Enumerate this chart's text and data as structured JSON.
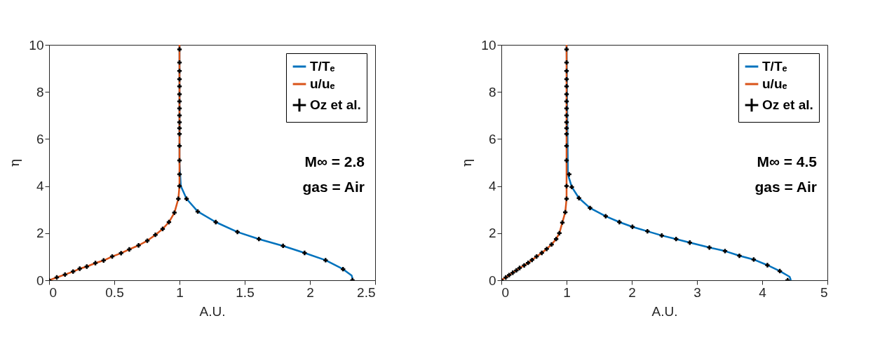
{
  "chart_data": [
    {
      "type": "line",
      "xlabel": "A.U.",
      "ylabel": "η",
      "xlim": [
        0,
        2.5
      ],
      "ylim": [
        0,
        10
      ],
      "xticks": [
        0,
        0.5,
        1,
        1.5,
        2,
        2.5
      ],
      "yticks": [
        0,
        2,
        4,
        6,
        8,
        10
      ],
      "grid": false,
      "legend": "top right",
      "annotations": [
        "M∞ = 2.8",
        "gas = Air"
      ],
      "series": [
        {
          "name": "T/Tₑ",
          "color": "#0072bd",
          "x": [
            2.33,
            2.32,
            2.254,
            2.12,
            1.959,
            1.794,
            1.609,
            1.444,
            1.278,
            1.14,
            1.054,
            1.01,
            1.0,
            1.0
          ],
          "values": [
            0,
            0.2,
            0.47,
            0.85,
            1.16,
            1.46,
            1.75,
            2.05,
            2.47,
            2.92,
            3.46,
            4.0,
            5.0,
            10
          ]
        },
        {
          "name": "u/uₑ",
          "color": "#d95319",
          "x": [
            0,
            0.059,
            0.122,
            0.184,
            0.235,
            0.289,
            0.355,
            0.418,
            0.484,
            0.552,
            0.615,
            0.686,
            0.753,
            0.815,
            0.871,
            0.919,
            0.961,
            0.991,
            1.0,
            1.0
          ],
          "values": [
            0,
            0.12,
            0.24,
            0.37,
            0.49,
            0.58,
            0.73,
            0.84,
            1.01,
            1.15,
            1.31,
            1.48,
            1.68,
            1.93,
            2.18,
            2.47,
            2.87,
            3.46,
            4.0,
            10
          ]
        },
        {
          "name": "Oz et al.",
          "type": "scatter",
          "marker": "cross",
          "color": "#000000",
          "x": [
            0,
            0.059,
            0.122,
            0.184,
            0.235,
            0.289,
            0.355,
            0.418,
            0.484,
            0.552,
            0.615,
            0.686,
            0.753,
            0.815,
            0.871,
            0.919,
            0.961,
            0.991,
            1.0,
            1.054,
            1.14,
            1.278,
            1.444,
            1.609,
            1.794,
            1.959,
            2.12,
            2.254,
            2.326,
            1.0,
            1.0,
            1.0,
            1.0,
            1.0,
            1.0,
            1.0,
            1.0,
            1.0,
            1.0,
            1.0,
            1.0,
            1.0,
            1.0,
            1.0
          ],
          "values": [
            0,
            0.12,
            0.24,
            0.37,
            0.49,
            0.58,
            0.73,
            0.84,
            1.01,
            1.15,
            1.31,
            1.48,
            1.68,
            1.93,
            2.18,
            2.47,
            2.87,
            3.46,
            4.0,
            3.46,
            2.92,
            2.47,
            2.05,
            1.75,
            1.46,
            1.16,
            0.85,
            0.47,
            0,
            4.5,
            5.09,
            5.71,
            6.21,
            6.46,
            6.71,
            7.0,
            7.3,
            7.6,
            7.9,
            8.24,
            8.54,
            8.89,
            9.25,
            9.81
          ]
        }
      ]
    },
    {
      "type": "line",
      "xlabel": "A.U.",
      "ylabel": "η",
      "xlim": [
        0,
        5
      ],
      "ylim": [
        0,
        10
      ],
      "xticks": [
        0,
        1,
        2,
        3,
        4,
        5
      ],
      "yticks": [
        0,
        2,
        4,
        6,
        8,
        10
      ],
      "grid": false,
      "legend": "top right",
      "annotations": [
        "M∞ = 4.5",
        "gas = Air"
      ],
      "series": [
        {
          "name": "T/Tₑ",
          "color": "#0072bd",
          "x": [
            4.44,
            4.42,
            4.27,
            4.08,
            3.87,
            3.65,
            3.43,
            3.19,
            2.89,
            2.68,
            2.46,
            2.24,
            2.01,
            1.81,
            1.6,
            1.36,
            1.19,
            1.08,
            1.02,
            1.0
          ],
          "values": [
            0,
            0.15,
            0.39,
            0.64,
            0.88,
            1.04,
            1.24,
            1.39,
            1.6,
            1.75,
            1.9,
            2.08,
            2.27,
            2.47,
            2.72,
            3.07,
            3.49,
            3.96,
            4.5,
            10
          ]
        },
        {
          "name": "u/uₑ",
          "color": "#d95319",
          "x": [
            0,
            0.068,
            0.28,
            0.35,
            0.41,
            0.47,
            0.54,
            0.62,
            0.695,
            0.77,
            0.84,
            0.89,
            0.935,
            0.98,
            1.0,
            1.0,
            1.0
          ],
          "values": [
            0,
            0.12,
            0.52,
            0.63,
            0.74,
            0.86,
            1.01,
            1.16,
            1.33,
            1.52,
            1.75,
            2.0,
            2.45,
            2.89,
            3.46,
            4.0,
            10
          ]
        },
        {
          "name": "Oz et al.",
          "type": "scatter",
          "marker": "cross",
          "color": "#000000",
          "x": [
            0,
            0.068,
            0.12,
            0.175,
            0.23,
            0.28,
            0.35,
            0.41,
            0.47,
            0.54,
            0.62,
            0.695,
            0.77,
            0.84,
            0.89,
            0.935,
            0.98,
            1.0,
            1.0,
            1.08,
            1.19,
            1.36,
            1.6,
            1.81,
            2.01,
            2.24,
            2.46,
            2.68,
            2.89,
            3.19,
            3.43,
            3.65,
            3.87,
            4.08,
            4.27,
            4.39,
            1.04,
            1.0,
            1.0,
            1.0,
            1.0,
            1.0,
            1.0,
            1.0,
            1.0,
            1.0,
            1.0,
            1.0,
            1.0,
            1.0,
            1.0
          ],
          "values": [
            0,
            0.12,
            0.22,
            0.32,
            0.42,
            0.52,
            0.63,
            0.74,
            0.86,
            1.01,
            1.16,
            1.33,
            1.52,
            1.75,
            2.0,
            2.45,
            2.89,
            3.46,
            4.0,
            3.96,
            3.49,
            3.07,
            2.72,
            2.47,
            2.27,
            2.08,
            1.9,
            1.75,
            1.6,
            1.39,
            1.24,
            1.04,
            0.88,
            0.64,
            0.39,
            0,
            4.5,
            5.09,
            5.71,
            6.21,
            6.46,
            6.71,
            7.0,
            7.3,
            7.6,
            7.9,
            8.24,
            8.54,
            8.89,
            9.25,
            9.81
          ]
        }
      ]
    }
  ]
}
